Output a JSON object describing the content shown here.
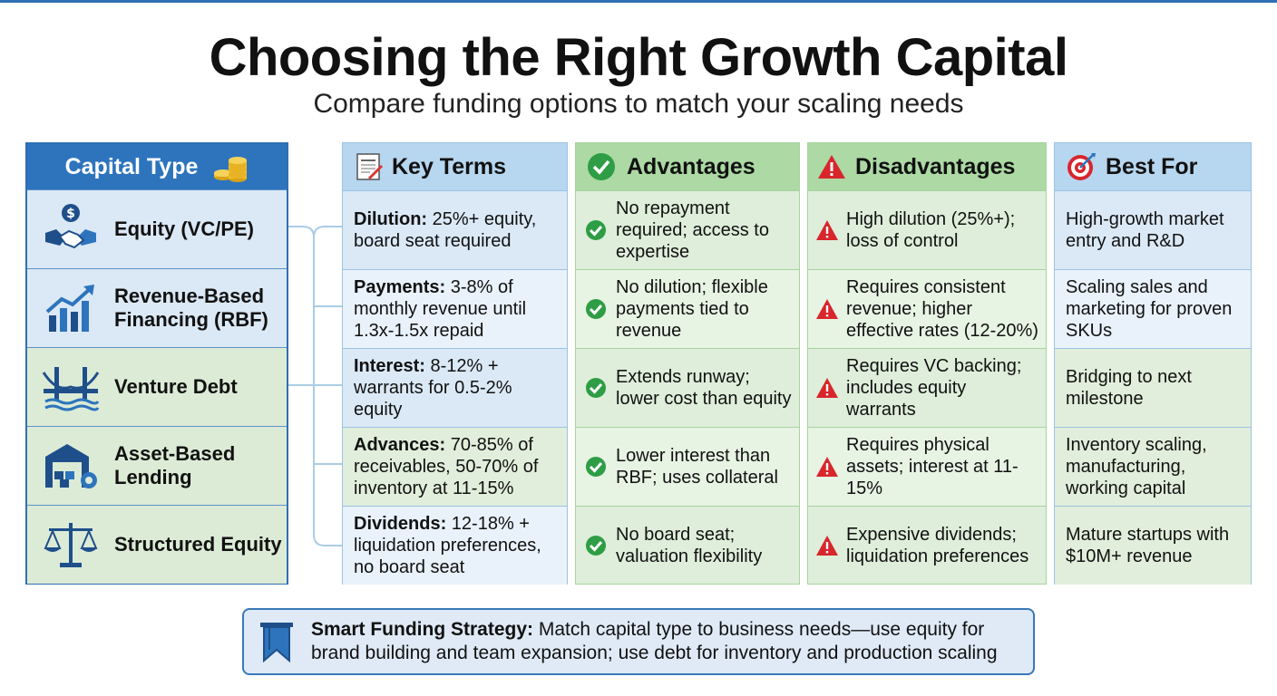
{
  "title": "Choosing the Right Growth Capital",
  "subtitle": "Compare funding options to match your scaling needs",
  "headers": {
    "capital_type": "Capital Type",
    "key_terms": "Key Terms",
    "advantages": "Advantages",
    "disadvantages": "Disadvantages",
    "best_for": "Best For"
  },
  "rows": [
    {
      "type": "Equity (VC/PE)",
      "icon": "handshake-dollar-icon",
      "term_label": "Dilution:",
      "term_text": " 25%+ equity, board seat required",
      "advantage": "No repayment required; access to expertise",
      "disadvantage": "High dilution (25%+); loss of control",
      "best_for": "High-growth market entry and R&D"
    },
    {
      "type": "Revenue-Based Financing (RBF)",
      "icon": "growth-chart-icon",
      "term_label": "Payments:",
      "term_text": " 3-8% of monthly revenue until 1.3x-1.5x repaid",
      "advantage": "No dilution; flexible payments tied to revenue",
      "disadvantage": "Requires consistent revenue; higher effective rates (12-20%)",
      "best_for": "Scaling sales and marketing for proven SKUs"
    },
    {
      "type": "Venture Debt",
      "icon": "bridge-icon",
      "term_label": "Interest:",
      "term_text": " 8-12% + warrants for 0.5-2% equity",
      "advantage": "Extends runway; lower cost than equity",
      "disadvantage": "Requires VC backing; includes equity warrants",
      "best_for": "Bridging to next milestone"
    },
    {
      "type": "Asset-Based Lending",
      "icon": "warehouse-gear-icon",
      "term_label": "Advances:",
      "term_text": " 70-85% of receivables, 50-70% of inventory at 11-15%",
      "advantage": "Lower interest than RBF; uses collateral",
      "disadvantage": "Requires physical assets; interest at 11-15%",
      "best_for": "Inventory scaling, manufacturing, working capital"
    },
    {
      "type": "Structured Equity",
      "icon": "balance-scale-icon",
      "term_label": "Dividends:",
      "term_text": " 12-18% + liquidation preferences, no board seat",
      "advantage": "No board seat; valuation flexibility",
      "disadvantage": "Expensive dividends; liquidation preferences",
      "best_for": "Mature startups with $10M+ revenue"
    }
  ],
  "strategy": {
    "label": "Smart Funding Strategy:",
    "text": " Match capital type to business needs—use equity for brand building and team expansion; use debt for inventory and production scaling"
  },
  "colors": {
    "accent_blue": "#2d74bd",
    "light_blue": "#dbe9f6",
    "light_green": "#deeeda",
    "check_green": "#2e9d45",
    "warning_red": "#d8262c"
  }
}
